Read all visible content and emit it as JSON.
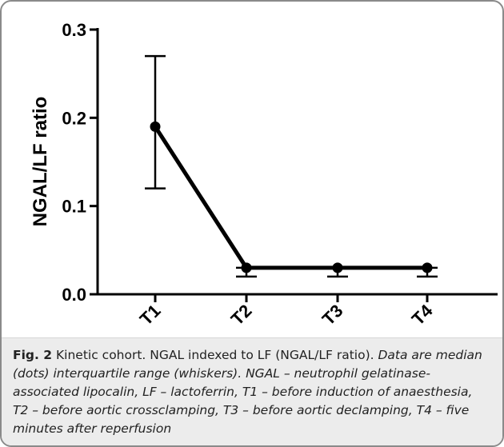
{
  "chart_data": {
    "type": "line",
    "ylabel": "NGAL/LF ratio",
    "xlabel": "",
    "categories": [
      "T1",
      "T2",
      "T3",
      "T4"
    ],
    "ylim": [
      0,
      0.3
    ],
    "yticks": [
      "0.0",
      "0.1",
      "0.2",
      "0.3"
    ],
    "series": [
      {
        "median": [
          0.19,
          0.03,
          0.03,
          0.03
        ],
        "q1": [
          0.12,
          0.02,
          0.02,
          0.02
        ],
        "q3": [
          0.27,
          0.03,
          0.03,
          0.03
        ]
      }
    ]
  },
  "caption": {
    "label": "Fig. 2",
    "text1": " Kinetic cohort. NGAL indexed to LF (NGAL/LF ratio). ",
    "italic": "Data are median (dots) interquartile range (whiskers). NGAL – neutrophil gelatinase-associated lipocalin, LF – lactoferrin, T1 – before induction of anaesthesia, T2 – before aortic crossclamping, T3 – before aortic declamping, T4 – five minutes after reperfusion"
  }
}
